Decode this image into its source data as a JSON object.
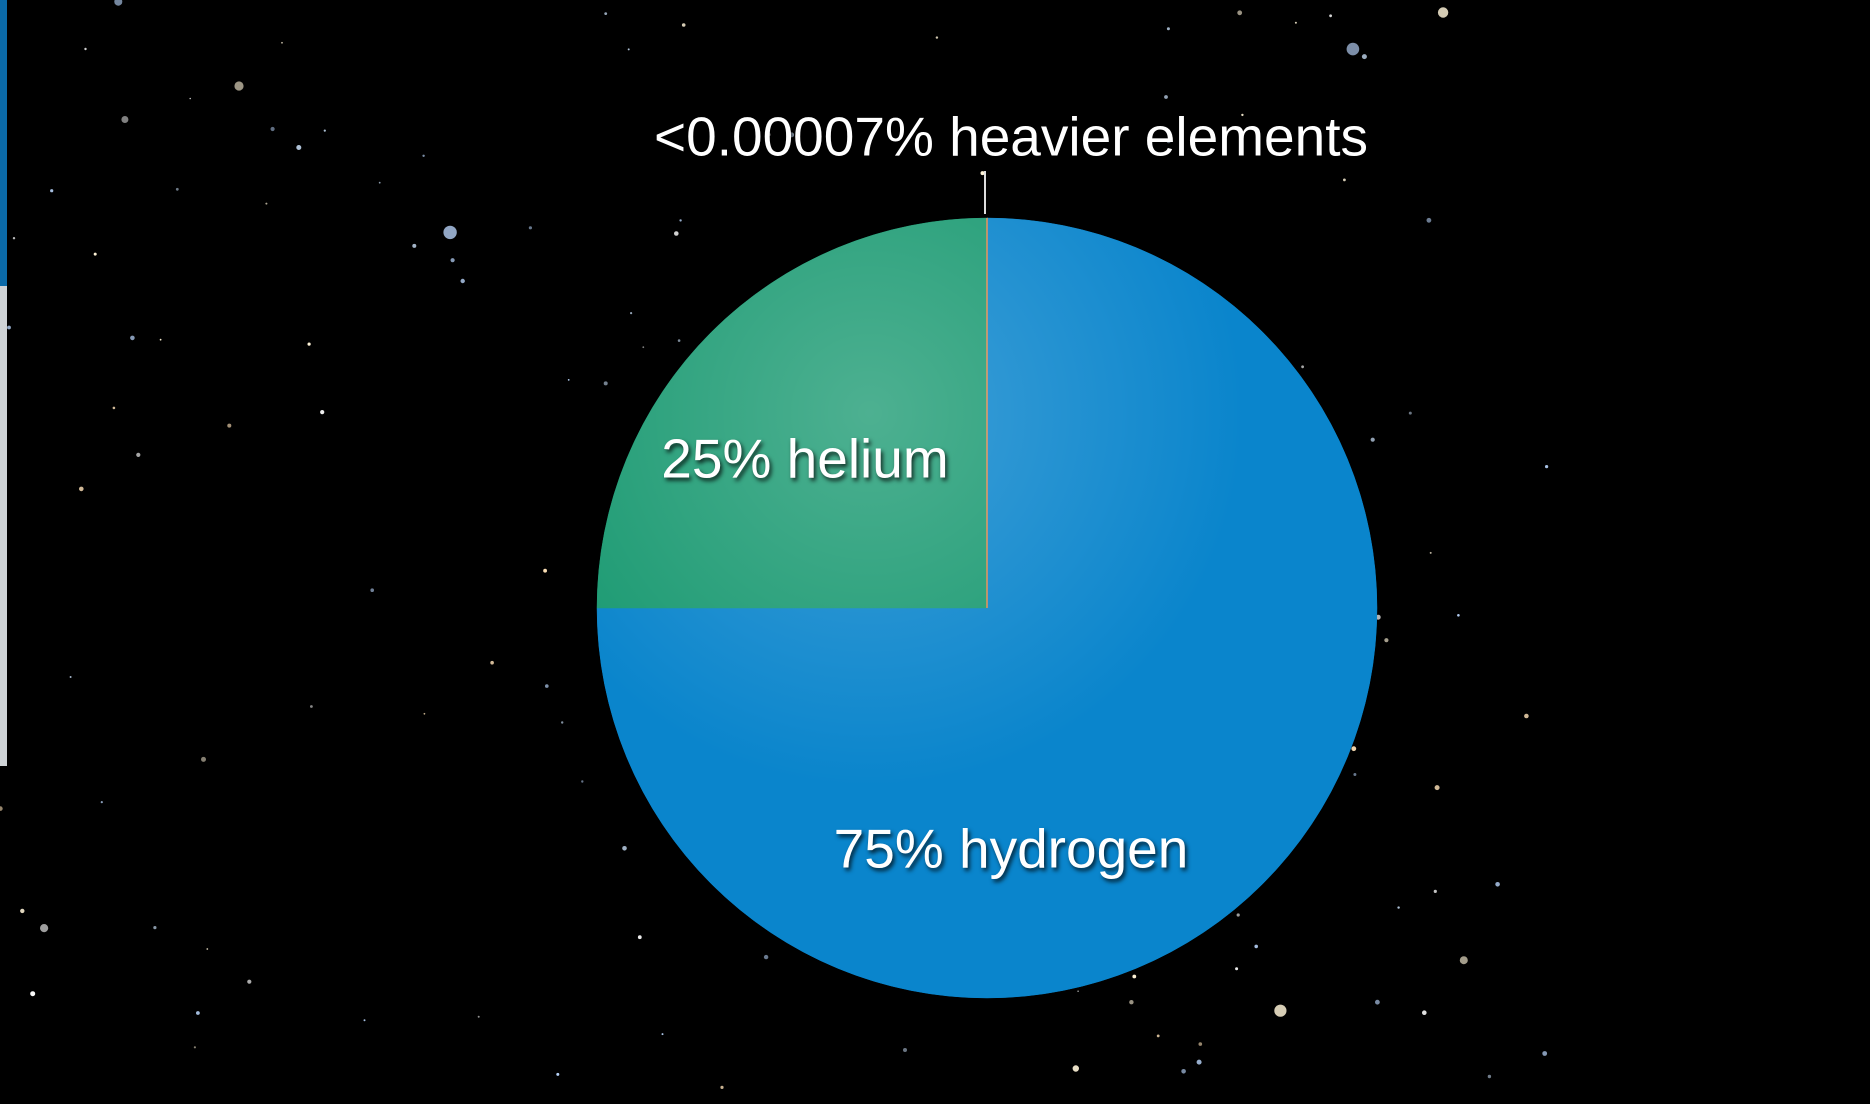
{
  "chart_data": {
    "type": "pie",
    "values": [
      75,
      25,
      7e-05
    ],
    "value_labels": [
      "75% hydrogen",
      "25% helium",
      "<0.00007% heavier elements"
    ],
    "colors": [
      "#0a85cc",
      "#1b9a72",
      "#e8894c"
    ]
  }
}
